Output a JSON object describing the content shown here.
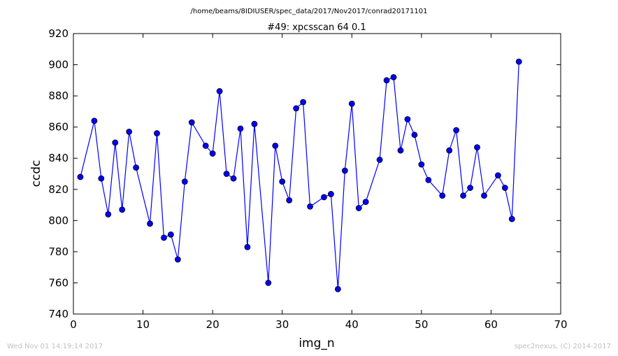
{
  "header": {
    "path": "/home/beams/8IDIUSER/spec_data/2017/Nov2017/conrad20171101"
  },
  "footer": {
    "timestamp": "Wed Nov 01 14:19:14 2017",
    "credit": "spec2nexus, (C) 2014-2017"
  },
  "colors": {
    "series": "#0000ff",
    "axes": "#000000",
    "footer": "#c0c0c0"
  },
  "chart_data": {
    "type": "line",
    "title": "#49: xpcsscan 64 0.1",
    "xlabel": "img_n",
    "ylabel": "ccdc",
    "xlim": [
      0,
      70
    ],
    "ylim": [
      740,
      920
    ],
    "xticks": [
      0,
      10,
      20,
      30,
      40,
      50,
      60,
      70
    ],
    "yticks": [
      740,
      760,
      780,
      800,
      820,
      840,
      860,
      880,
      900,
      920
    ],
    "grid": false,
    "legend": "none",
    "marker": "circle",
    "series": [
      {
        "x": [
          1,
          3,
          4,
          5,
          6,
          7,
          8,
          9,
          11,
          12,
          13,
          14,
          15,
          16,
          17,
          19,
          20,
          21,
          22,
          23,
          24,
          25,
          26,
          28,
          29,
          30,
          31,
          32,
          33,
          34,
          36,
          37,
          38,
          39,
          40,
          41,
          42,
          44,
          45,
          46,
          47,
          48,
          49,
          50,
          51,
          53,
          54,
          55,
          56,
          57,
          58,
          59,
          61,
          62,
          63,
          64
        ],
        "y": [
          828,
          864,
          827,
          804,
          850,
          807,
          857,
          834,
          798,
          856,
          789,
          791,
          775,
          825,
          863,
          848,
          843,
          883,
          830,
          827,
          859,
          783,
          862,
          760,
          848,
          825,
          813,
          872,
          876,
          809,
          815,
          817,
          756,
          832,
          875,
          808,
          812,
          839,
          890,
          892,
          845,
          865,
          855,
          836,
          826,
          816,
          845,
          858,
          816,
          821,
          847,
          816,
          829,
          821,
          801,
          902
        ]
      }
    ]
  }
}
